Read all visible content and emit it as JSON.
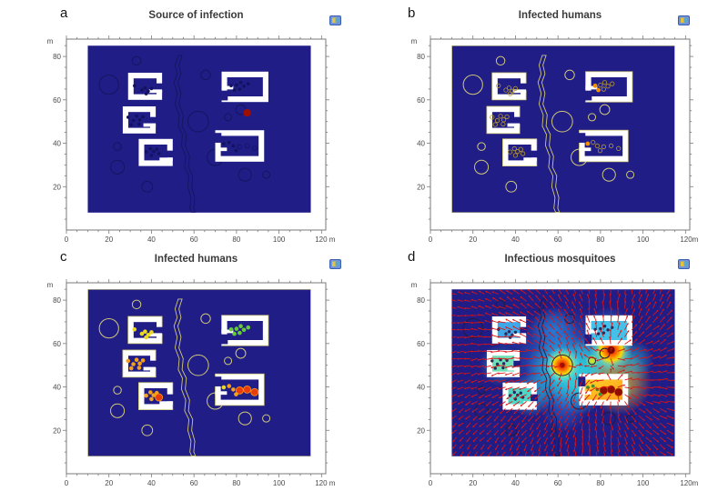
{
  "figure": {
    "background": "#ffffff"
  },
  "chart_data": {
    "type": "map-simulation-multipanel",
    "description": "2x2 spatial epidemic simulation panels on a village map (buildings, trees, river)",
    "x_range": [
      0,
      122
    ],
    "y_range": [
      0,
      88
    ],
    "x_ticks": [
      0,
      20,
      40,
      60,
      80,
      100,
      120
    ],
    "y_ticks": [
      20,
      40,
      60,
      80
    ],
    "minor_tick_step": 5,
    "axis_unit": "m",
    "colors": {
      "domain_fill": "#201d86",
      "building_fill": "#ffffff",
      "axis_stroke": "#7a7a7a",
      "tick_label": "#4a4a4a"
    },
    "geometry": {
      "domain": {
        "x": 10,
        "y": 8,
        "w": 105,
        "h": 77
      },
      "wall_thickness": 2.6,
      "trees": [
        [
          20,
          67,
          4.5
        ],
        [
          33,
          78,
          2
        ],
        [
          65.5,
          71.5,
          2.2
        ],
        [
          24,
          38.5,
          1.8
        ],
        [
          24,
          29,
          3.2
        ],
        [
          38,
          20,
          2.5
        ],
        [
          62,
          50,
          4.8
        ],
        [
          70,
          33.5,
          3.8
        ],
        [
          76,
          52,
          1.7
        ],
        [
          82,
          55.5,
          2.3
        ],
        [
          84,
          25.5,
          3
        ],
        [
          94,
          25.5,
          1.7
        ]
      ],
      "river_centerline": [
        [
          53.5,
          80.5
        ],
        [
          52,
          76
        ],
        [
          53,
          72
        ],
        [
          51.5,
          68
        ],
        [
          53,
          63
        ],
        [
          52,
          58
        ],
        [
          54,
          53
        ],
        [
          53.5,
          48
        ],
        [
          55.5,
          44
        ],
        [
          55,
          39
        ],
        [
          57,
          34
        ],
        [
          56.5,
          29
        ],
        [
          58.5,
          25
        ],
        [
          58,
          20
        ],
        [
          59.5,
          15
        ],
        [
          59,
          10
        ],
        [
          59.8,
          8.2
        ]
      ],
      "river_halfwidth": 0.9,
      "buildings": [
        {
          "x": 29,
          "y": 60,
          "w": 16,
          "h": 12.5,
          "open_side": "right",
          "open_c": 66,
          "open_len": 3.2,
          "stub": [
            38.8,
            63.2,
            6.2,
            1.6
          ]
        },
        {
          "x": 26.5,
          "y": 44.5,
          "w": 15.5,
          "h": 12.5,
          "open_side": "right",
          "open_c": 50.5,
          "open_len": 3.2,
          "stub": [
            36.2,
            47.6,
            5.8,
            1.6
          ]
        },
        {
          "x": 34,
          "y": 29.5,
          "w": 16,
          "h": 12.5,
          "open_side": "right",
          "open_c": 35,
          "open_len": 3.2,
          "stub": [
            43.8,
            31.8,
            6.2,
            1.6
          ]
        },
        {
          "x": 73,
          "y": 59,
          "w": 22,
          "h": 14,
          "open_side": "left",
          "open_c": 62,
          "open_len": 4.5,
          "stub": [
            73,
            64.8,
            5.5,
            1.6
          ]
        },
        {
          "x": 70,
          "y": 31.5,
          "w": 23,
          "h": 14.5,
          "open_side": "left",
          "open_c": 42.5,
          "open_len": 4.5,
          "stub": [
            70,
            36.4,
            5.5,
            1.6
          ]
        }
      ],
      "occupants": [
        [
          [
            32,
            66.5
          ],
          [
            35.5,
            64.5
          ],
          [
            37,
            65.5
          ],
          [
            38.5,
            64
          ],
          [
            40,
            65.2
          ],
          [
            37.5,
            62.8
          ]
        ],
        [
          [
            29,
            52
          ],
          [
            31.5,
            50.5
          ],
          [
            33,
            52.5
          ],
          [
            34.5,
            50.8
          ],
          [
            36,
            52.2
          ],
          [
            30.5,
            48.6
          ],
          [
            34.2,
            48.8
          ]
        ],
        [
          [
            37.5,
            36
          ],
          [
            39.5,
            37.5
          ],
          [
            41,
            36.2
          ],
          [
            42.5,
            37.2
          ],
          [
            40,
            34.4
          ],
          [
            43.5,
            35.2
          ]
        ],
        [
          [
            77.5,
            66.5
          ],
          [
            80,
            66.8
          ],
          [
            82,
            68
          ],
          [
            83.5,
            66.3
          ],
          [
            85.5,
            67.4
          ],
          [
            81.5,
            64.9
          ],
          [
            79,
            64.5
          ]
        ],
        [
          [
            74,
            39.8
          ],
          [
            76.5,
            40.4
          ],
          [
            78.5,
            38.8
          ],
          [
            81.5,
            38.4
          ],
          [
            85,
            38.8
          ],
          [
            88.5,
            37.6
          ],
          [
            79.8,
            36.6
          ]
        ]
      ]
    },
    "panels": [
      {
        "id": "a",
        "label": "a",
        "title": "Source of infection",
        "y_axis_unit": "m",
        "x_axis_end_label": "120 m",
        "style": "source",
        "outline_color": "#15155f",
        "domain_stroke": "none",
        "dot_color": "#12125e",
        "hollow_dots": {
          "4": [
            3,
            4,
            5
          ]
        },
        "source_marker": {
          "x": 85,
          "y": 54,
          "color": "#9b0f06",
          "meaning": "infection source"
        }
      },
      {
        "id": "b",
        "label": "b",
        "title": "Infected humans",
        "y_axis_unit": "m",
        "x_axis_end_label": "120m",
        "style": "status_outline",
        "outline_color": "#cfc878",
        "domain_stroke": "#cfc878",
        "dot_stroke": "#b89b2e",
        "infected": {
          "3": [
            0,
            6
          ],
          "4": [
            0
          ]
        },
        "infected_color": "#f09000"
      },
      {
        "id": "c",
        "label": "c",
        "title": "Infected humans",
        "y_axis_unit": "m",
        "x_axis_end_label": "120 m",
        "style": "status_colored",
        "outline_color": "#cfc878",
        "domain_stroke": "#cfc878",
        "building_dot_colors": [
          "#ead91f",
          "#f5a11c",
          "#f5a11c",
          "#67c93c",
          "#f5a11c"
        ],
        "dot_overrides": {
          "4": {
            "0": "#ead91f"
          }
        },
        "severe": {
          "2": [
            5
          ],
          "4": [
            3,
            4,
            5
          ]
        },
        "severe_color": "#e83c0c",
        "severe_ring": "#ff9d1a"
      },
      {
        "id": "d",
        "label": "d",
        "title": "Infectious mosquitoes",
        "y_axis_unit": "m",
        "x_axis_end_label": "120m",
        "style": "heatmap",
        "outline_color": "#1c1c40",
        "domain_stroke": "none",
        "colormap": "jet",
        "interior_fills": [
          "#3fa8e8",
          "#6fe0b8",
          "#4fd8c8",
          "#45c0e8",
          "mr"
        ],
        "mr_gradient": [
          "#ffd22a",
          "#ff9d1a"
        ],
        "dot_color": "#2a2a5e",
        "mr_red_dots": [
          3,
          4,
          5
        ],
        "mr_red_color": "#8e0f00",
        "mr_green_color": "#3f8f2f",
        "plume_blobs": [
          [
            62,
            52,
            26,
            "#2a6fd4",
            0.85
          ],
          [
            63,
            47,
            18,
            "#2fd8e0",
            0.9
          ],
          [
            70,
            40,
            13,
            "#2fd8e0",
            0.8
          ],
          [
            77,
            51,
            13,
            "#2fd8e0",
            0.8
          ],
          [
            58,
            66,
            11,
            "#2a8fe0",
            0.7
          ],
          [
            63,
            30,
            11,
            "#2a6fd4",
            0.6
          ],
          [
            47,
            36,
            10,
            "#2fc8e0",
            0.65
          ],
          [
            33,
            50,
            10,
            "#2fc8e0",
            0.5
          ],
          [
            37,
            66,
            9,
            "#2a6fd4",
            0.6
          ],
          [
            84,
            66,
            11,
            "#2a8fe0",
            0.65
          ],
          [
            89,
            42,
            15,
            "#ffcc22",
            0.75
          ],
          [
            95,
            52,
            10,
            "#2fd8e0",
            0.55
          ]
        ],
        "hotspots": [
          {
            "x": 62,
            "y": 50,
            "r": 8.5,
            "kind": "burst"
          },
          {
            "x": 85,
            "y": 57,
            "r": 10,
            "kind": "burst"
          },
          {
            "x": 87.5,
            "y": 39,
            "r": 7,
            "kind": "burst"
          },
          {
            "x": 76,
            "y": 52,
            "r": 3,
            "kind": "mild"
          }
        ],
        "core_dots": [
          [
            85,
            57,
            1.7,
            "#7a0500"
          ],
          [
            62,
            50,
            1.2,
            "#a01000"
          ]
        ],
        "quiver": {
          "grid_step": 3.3,
          "color": "#e01212",
          "arrow_length": 2.7,
          "sources": [
            [
              62,
              50
            ],
            [
              85,
              57
            ],
            [
              87.5,
              39
            ]
          ],
          "swirl_center": [
            62,
            46
          ],
          "swirl_strength": 0.7
        }
      }
    ]
  }
}
